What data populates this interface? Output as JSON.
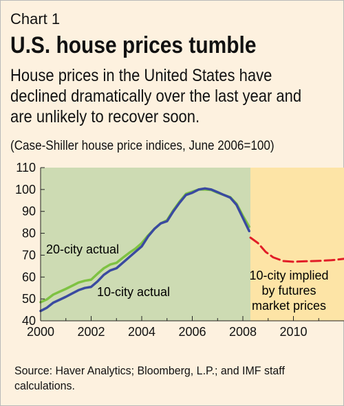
{
  "chart_label": "Chart 1",
  "title": "U.S. house prices tumble",
  "description": "House prices in the United States have declined dramatically over the last year and are unlikely to recover soon.",
  "subtitle": "(Case-Shiller house price indices, June 2006=100)",
  "source": "Source: Haver Analytics; Bloomberg, L.P.; and IMF staff calculations.",
  "colors": {
    "actual_background": "#cddbb3",
    "forecast_background": "#fde4a6",
    "city20": "#7ec242",
    "city10": "#3a4aa0",
    "futures": "#e11d27"
  },
  "chart_data": {
    "type": "line",
    "title": "U.S. house prices tumble",
    "xlabel": "",
    "ylabel": "",
    "xlim": [
      2000,
      2012
    ],
    "ylim": [
      40,
      110
    ],
    "xticks": [
      2000,
      2002,
      2004,
      2006,
      2008,
      2010
    ],
    "yticks": [
      40,
      50,
      60,
      70,
      80,
      90,
      100,
      110
    ],
    "grid": false,
    "shaded_regions": [
      {
        "from": 2000,
        "to": 2008.3,
        "color": "actual_background"
      },
      {
        "from": 2008.3,
        "to": 2012,
        "color": "forecast_background"
      }
    ],
    "series": [
      {
        "name": "20-city actual",
        "color": "city20",
        "x": [
          2000,
          2000.25,
          2000.5,
          2000.75,
          2001,
          2001.25,
          2001.5,
          2001.75,
          2002,
          2002.25,
          2002.5,
          2002.75,
          2003,
          2003.25,
          2003.5,
          2003.75,
          2004,
          2004.25,
          2004.5,
          2004.75,
          2005,
          2005.25,
          2005.5,
          2005.75,
          2006,
          2006.25,
          2006.5,
          2006.75,
          2007,
          2007.25,
          2007.5,
          2007.75,
          2008,
          2008.25
        ],
        "y": [
          48.5,
          49.8,
          52,
          53.3,
          54.6,
          56,
          57.5,
          58.3,
          58.8,
          61.5,
          64,
          65.7,
          66.5,
          68.8,
          71,
          73,
          75.5,
          79,
          82,
          84.5,
          86,
          90.5,
          94.5,
          98,
          99,
          100,
          100,
          99.8,
          98.5,
          97.5,
          96.5,
          93.5,
          88,
          83
        ]
      },
      {
        "name": "10-city actual",
        "color": "city10",
        "x": [
          2000,
          2000.25,
          2000.5,
          2000.75,
          2001,
          2001.25,
          2001.5,
          2001.75,
          2002,
          2002.25,
          2002.5,
          2002.75,
          2003,
          2003.25,
          2003.5,
          2003.75,
          2004,
          2004.25,
          2004.5,
          2004.75,
          2005,
          2005.25,
          2005.5,
          2005.75,
          2006,
          2006.25,
          2006.5,
          2006.75,
          2007,
          2007.25,
          2007.5,
          2007.75,
          2008,
          2008.25
        ],
        "y": [
          44.5,
          46,
          48.3,
          49.6,
          51,
          52.5,
          54,
          55,
          55.5,
          58,
          61,
          63,
          64,
          66.5,
          69,
          71.5,
          74,
          78.5,
          82,
          84.5,
          85.5,
          90,
          94,
          97.5,
          98.5,
          100,
          100.5,
          100,
          98.8,
          97.5,
          96.3,
          93,
          87,
          81
        ]
      },
      {
        "name": "10-city implied by futures market prices",
        "color": "futures",
        "dashed": true,
        "x": [
          2008.3,
          2008.6,
          2008.9,
          2009.2,
          2009.6,
          2010,
          2010.5,
          2011,
          2011.5,
          2012
        ],
        "y": [
          78,
          75.5,
          71.5,
          69,
          67.3,
          67,
          67.2,
          67.4,
          67.7,
          68.3
        ]
      }
    ],
    "annotations": [
      "20-city actual",
      "10-city actual",
      "10-city implied",
      "by futures",
      "market prices"
    ]
  }
}
